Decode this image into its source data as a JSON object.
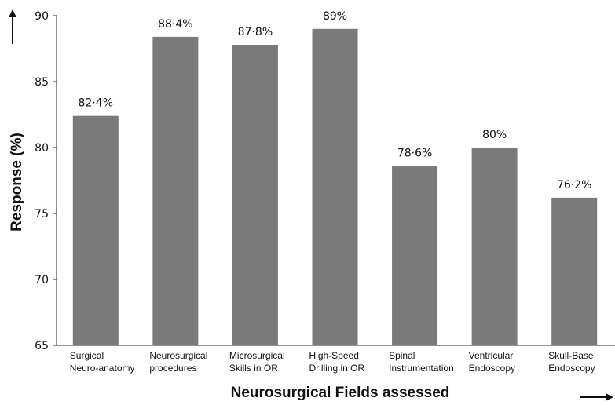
{
  "chart_data": {
    "type": "bar",
    "categories": [
      [
        "Surgical",
        "Neuro-anatomy"
      ],
      [
        "Neurosurgical",
        "procedures"
      ],
      [
        "Microsurgical",
        "Skills in OR"
      ],
      [
        "High-Speed",
        "Drilling in OR"
      ],
      [
        "Spinal",
        "Instrumentation"
      ],
      [
        "Ventricular",
        "Endoscopy"
      ],
      [
        "Skull-Base",
        "Endoscopy"
      ]
    ],
    "values": [
      82.4,
      88.4,
      87.8,
      89,
      78.6,
      80,
      76.2
    ],
    "data_labels": [
      "82·4%",
      "88·4%",
      "87·8%",
      "89%",
      "78·6%",
      "80%",
      "76·2%"
    ],
    "title": "",
    "xlabel": "Neurosurgical Fields assessed",
    "ylabel": "Response (%)",
    "ylim": [
      65,
      90
    ],
    "yticks": [
      "65",
      "70",
      "75",
      "80",
      "85",
      "90"
    ],
    "grid": false,
    "bar_color": "#7a7a7a",
    "axis_color": "#555555"
  }
}
